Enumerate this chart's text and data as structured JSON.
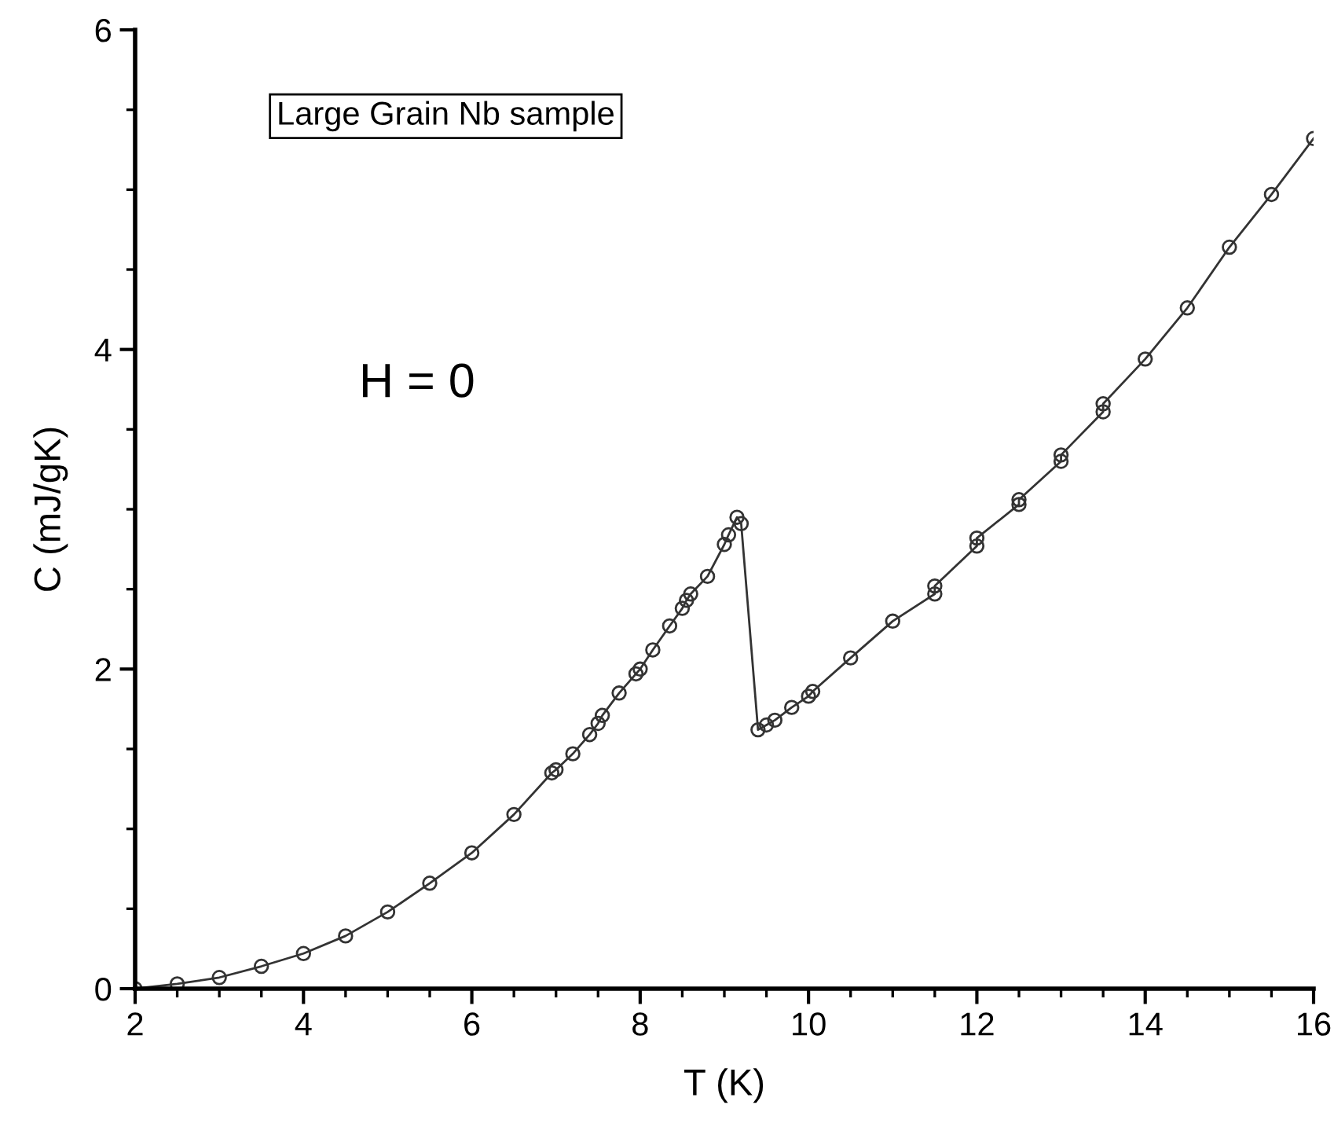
{
  "chart_data": {
    "type": "line",
    "xlabel": "T (K)",
    "ylabel": "C (mJ/gK)",
    "annotations": [
      "Large Grain Nb sample",
      "H = 0"
    ],
    "x": [
      2,
      2.5,
      3,
      3.5,
      4,
      4.5,
      5,
      5.5,
      6,
      6.5,
      6.95,
      7.0,
      7.2,
      7.4,
      7.5,
      7.55,
      7.75,
      7.95,
      8.0,
      8.15,
      8.35,
      8.5,
      8.55,
      8.6,
      8.8,
      9.0,
      9.05,
      9.15,
      9.2,
      9.4,
      9.5,
      9.6,
      9.8,
      10.0,
      10.05,
      10.5,
      11,
      11.5,
      11.5,
      12,
      12,
      12.5,
      12.5,
      13,
      13,
      13.5,
      13.5,
      14,
      14.5,
      15,
      15.5,
      16
    ],
    "series": [
      {
        "color": "#333333",
        "values": [
          0,
          0.03,
          0.07,
          0.14,
          0.22,
          0.33,
          0.48,
          0.66,
          0.85,
          1.09,
          1.35,
          1.37,
          1.47,
          1.59,
          1.66,
          1.71,
          1.85,
          1.97,
          2.0,
          2.12,
          2.27,
          2.38,
          2.43,
          2.47,
          2.58,
          2.78,
          2.84,
          2.95,
          2.91,
          1.62,
          1.65,
          1.68,
          1.76,
          1.83,
          1.86,
          2.07,
          2.3,
          2.47,
          2.52,
          2.77,
          2.82,
          3.03,
          3.06,
          3.3,
          3.34,
          3.61,
          3.66,
          3.94,
          4.26,
          4.64,
          4.97,
          5.32
        ]
      }
    ],
    "xlim": [
      2,
      16
    ],
    "xticks": [
      2,
      4,
      6,
      8,
      10,
      12,
      14,
      16
    ],
    "ylim": [
      0,
      6
    ],
    "yticks": [
      0,
      2,
      4,
      6
    ],
    "marker": "circle",
    "line_style": "solid",
    "grid": false,
    "legend": false
  }
}
